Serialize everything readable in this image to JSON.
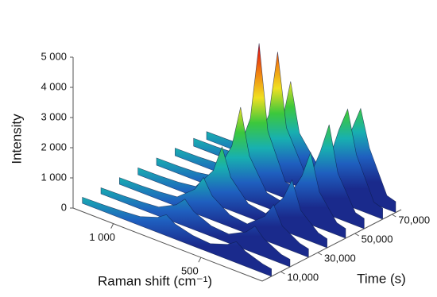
{
  "chart_data": {
    "type": "surface3d",
    "x_label": "Raman shift (cm⁻¹)",
    "y_label": "Time (s)",
    "z_label": "Intensity",
    "xlim": [
      1230,
      150
    ],
    "ylim": [
      0,
      75000
    ],
    "zlim": [
      0,
      5000
    ],
    "xticks": [
      {
        "value": 1000,
        "label": "1 000"
      },
      500
    ],
    "yticks": [
      {
        "value": 10000,
        "label": "10,000"
      },
      {
        "value": 30000,
        "label": "30,000"
      },
      {
        "value": 50000,
        "label": "50,000"
      },
      {
        "value": 70000,
        "label": "70,000"
      }
    ],
    "zticks": [
      0,
      {
        "value": 1000,
        "label": "1 000"
      },
      {
        "value": 2000,
        "label": "2 000"
      },
      {
        "value": 3000,
        "label": "3 000"
      },
      {
        "value": 4000,
        "label": "4 000"
      },
      {
        "value": 5000,
        "label": "5 000"
      }
    ],
    "colormap": [
      "#1a2a8c",
      "#1f5fbf",
      "#18b0b0",
      "#3cc83c",
      "#f0e020",
      "#f08010",
      "#e01010"
    ],
    "x": [
      1230,
      1100,
      1000,
      900,
      800,
      750,
      700,
      600,
      500,
      400,
      350,
      300,
      200,
      150
    ],
    "series": [
      {
        "t": 5000,
        "values": [
          200,
          220,
          250,
          300,
          500,
          700,
          500,
          350,
          300,
          500,
          700,
          500,
          300,
          250
        ]
      },
      {
        "t": 15000,
        "values": [
          200,
          220,
          250,
          300,
          600,
          900,
          600,
          350,
          300,
          600,
          900,
          600,
          300,
          250
        ]
      },
      {
        "t": 25000,
        "values": [
          220,
          230,
          260,
          320,
          800,
          1300,
          800,
          400,
          320,
          800,
          1300,
          700,
          350,
          280
        ]
      },
      {
        "t": 35000,
        "values": [
          230,
          240,
          270,
          350,
          1100,
          2000,
          1100,
          450,
          350,
          1100,
          1800,
          900,
          380,
          300
        ]
      },
      {
        "t": 45000,
        "values": [
          240,
          250,
          280,
          380,
          1600,
          3000,
          1500,
          500,
          380,
          1500,
          2400,
          1200,
          400,
          320
        ]
      },
      {
        "t": 55000,
        "values": [
          250,
          260,
          290,
          400,
          2200,
          4800,
          2000,
          550,
          400,
          2000,
          3000,
          1500,
          420,
          340
        ]
      },
      {
        "t": 65000,
        "values": [
          260,
          270,
          300,
          420,
          2000,
          4200,
          1800,
          600,
          420,
          2400,
          3200,
          1800,
          450,
          360
        ]
      },
      {
        "t": 72000,
        "values": [
          260,
          270,
          300,
          420,
          1500,
          3000,
          1400,
          600,
          420,
          2200,
          3000,
          1800,
          450,
          360
        ]
      }
    ]
  }
}
